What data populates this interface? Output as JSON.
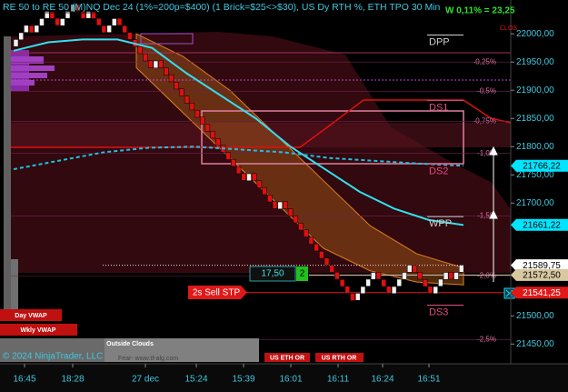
{
  "chart_data": {
    "type": "renko",
    "title": "RE 50 to RE 50 (M)NQ Dec 24 (1%=200p=$400) (1 Brick=$25<>$30), US Dy RTH %, ETH TPO 30 Min",
    "status": "W 0,11% = 23,25",
    "marker": "CLOS",
    "x": [
      "16:45",
      "18:28",
      "27 dec",
      "15:24",
      "15:39",
      "16:01",
      "16:11",
      "16:24",
      "16:51"
    ],
    "ylim": [
      21415,
      22060
    ],
    "yticks": [
      {
        "value": 22000,
        "label": "22000,00"
      },
      {
        "value": 21950,
        "label": "21950,00"
      },
      {
        "value": 21900,
        "label": "21900,00"
      },
      {
        "value": 21850,
        "label": "21850,00"
      },
      {
        "value": 21800,
        "label": "21800,00"
      },
      {
        "value": 21750,
        "label": "21750,00"
      },
      {
        "value": 21700,
        "label": "21700,00"
      },
      {
        "value": 21500,
        "label": "21500,00"
      },
      {
        "value": 21450,
        "label": "21450,00"
      }
    ],
    "up_color": "#f2f2f2",
    "down_color": "#e01010",
    "bricks": [
      21990,
      22002,
      22015,
      22002,
      22015,
      22027,
      22040,
      22027,
      22015,
      22027,
      22040,
      22052,
      22040,
      22027,
      22040,
      22027,
      22015,
      22002,
      22015,
      22027,
      22015,
      22002,
      21990,
      21977,
      21965,
      21952,
      21940,
      21952,
      21940,
      21927,
      21915,
      21902,
      21890,
      21877,
      21865,
      21852,
      21840,
      21827,
      21815,
      21802,
      21790,
      21777,
      21765,
      21752,
      21740,
      21752,
      21740,
      21727,
      21715,
      21702,
      21690,
      21702,
      21690,
      21677,
      21665,
      21652,
      21640,
      21627,
      21615,
      21602,
      21590,
      21577,
      21565,
      21552,
      21540,
      21527,
      21540,
      21552,
      21565,
      21577,
      21565,
      21552,
      21540,
      21552,
      21565,
      21577,
      21590,
      21577,
      21565,
      21552,
      21540,
      21552,
      21565,
      21577,
      21565,
      21577,
      21590
    ],
    "overlays": [
      {
        "color": "#33e0f0",
        "dashed": false,
        "values": [
          21970,
          21985,
          21990,
          21990,
          21975,
          21930,
          21890,
          21850,
          21800,
          21760,
          21720,
          21690,
          21670,
          21661
        ]
      },
      {
        "color": "#20c0e0",
        "dashed": true,
        "values": [
          21760,
          21775,
          21790,
          21798,
          21800,
          21795,
          21790,
          21780,
          21775,
          21770,
          21766
        ]
      }
    ],
    "cloud": {
      "color": "#b0601a",
      "upper": [
        22000,
        21960,
        21900,
        21820,
        21740,
        21660,
        21610,
        21585
      ],
      "lower": [
        21940,
        21860,
        21780,
        21700,
        21620,
        21580,
        21560,
        21555
      ]
    },
    "percent_levels": [
      {
        "value": 21950,
        "label": "-0,25%"
      },
      {
        "value": 21898,
        "label": "-0,5%"
      },
      {
        "value": 21845,
        "label": "-0,75%"
      },
      {
        "value": 21788,
        "label": "-1,0%"
      },
      {
        "value": 21677,
        "label": "-1,5%"
      },
      {
        "value": 21571,
        "label": "-2,0%"
      },
      {
        "value": 21458,
        "label": "-2,5%"
      }
    ],
    "levels": [
      {
        "value": 21998,
        "label": "DPP",
        "color": "#d0d0d0"
      },
      {
        "value": 21882,
        "label": "DS1",
        "color": "#e05080"
      },
      {
        "value": 21769,
        "label": "DS2",
        "color": "#e05080"
      },
      {
        "value": 21676,
        "label": "WPP",
        "color": "#d0d0d0"
      },
      {
        "value": 21519,
        "label": "DS3",
        "color": "#e05080"
      }
    ],
    "price_tags": [
      {
        "value": 21766.22,
        "label": "21766,22",
        "bg": "#00e5ff",
        "fg": "#000000"
      },
      {
        "value": 21661.22,
        "label": "21661,22",
        "bg": "#00e5ff",
        "fg": "#000000"
      },
      {
        "value": 21589.75,
        "label": "21589,75",
        "bg": "#ffffff",
        "fg": "#000000"
      },
      {
        "value": 21572.5,
        "label": "21572,50",
        "bg": "#d8c8a0",
        "fg": "#000000"
      },
      {
        "value": 21541.25,
        "label": "21541,25",
        "bg": "#e01818",
        "fg": "#ffffff"
      }
    ],
    "order": {
      "price": "17,50",
      "qty": "2",
      "label": "2s  Sell STP"
    },
    "buttons": [
      "Day VWAP",
      "Wkly VWAP"
    ],
    "panel": "Outside Clouds",
    "ranges": [
      "US ETH OR",
      "US RTH OR"
    ],
    "copyright": "© 2024 NinjaTrader, LLC",
    "watermark": "Fear- www.tf-alg.com"
  }
}
